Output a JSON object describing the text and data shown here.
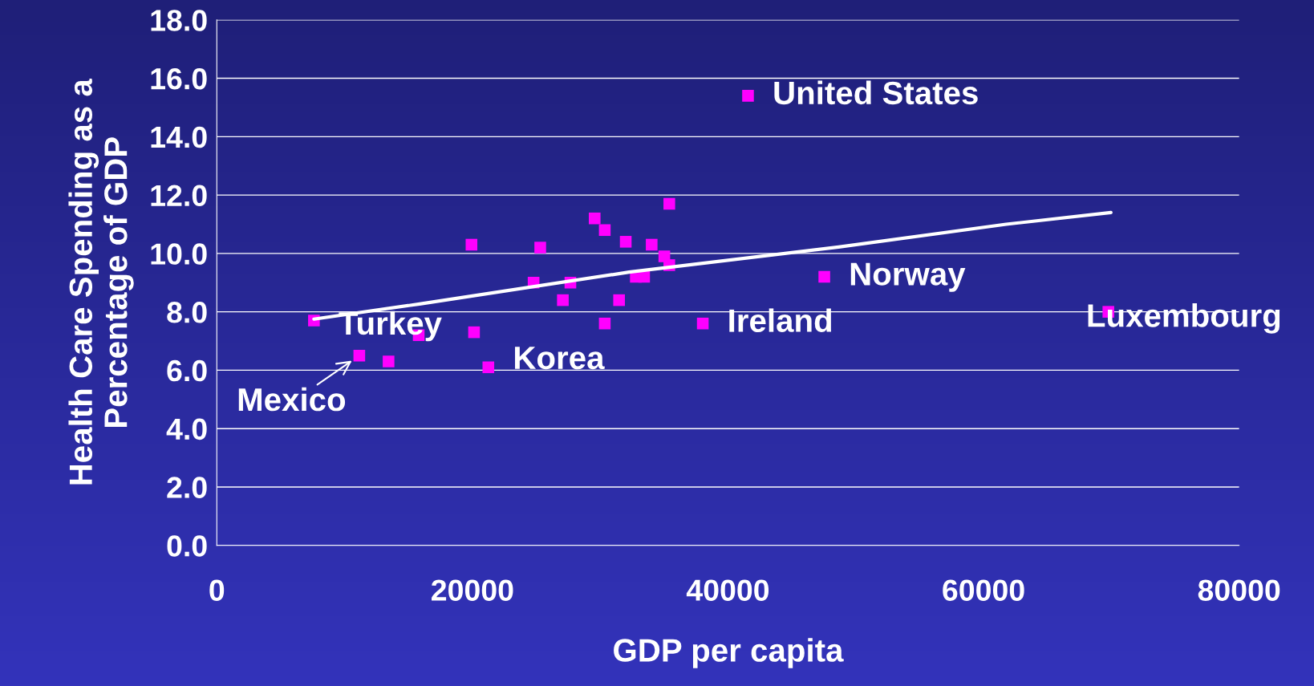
{
  "chart_data": {
    "type": "scatter",
    "xlabel": "GDP per capita",
    "ylabel": "Health Care Spending as a\nPercentage of GDP",
    "xlim": [
      0,
      80000
    ],
    "xticks": [
      0,
      20000,
      40000,
      60000,
      80000
    ],
    "ylim": [
      0,
      18
    ],
    "yticks": [
      {
        "value": 0,
        "label": "0.0"
      },
      {
        "value": 2,
        "label": "2.0"
      },
      {
        "value": 4,
        "label": "4.0"
      },
      {
        "value": 6,
        "label": "6.0"
      },
      {
        "value": 8,
        "label": "8.0"
      },
      {
        "value": 10,
        "label": "10.0"
      },
      {
        "value": 12,
        "label": "12.0"
      },
      {
        "value": 14,
        "label": "14.0"
      },
      {
        "value": 16,
        "label": "16.0"
      },
      {
        "value": 18,
        "label": "18.0"
      }
    ],
    "grid": "y",
    "legend": false,
    "series": [
      {
        "marker": "square",
        "color": "#ff00ff",
        "x": [
          7600,
          11150,
          13440,
          15800,
          20130,
          19930,
          21250,
          24790,
          25310,
          27080,
          27670,
          29570,
          30360,
          30360,
          31480,
          32000,
          32790,
          33440,
          34030,
          35020,
          35410,
          35410,
          38030,
          41570,
          47540,
          69770
        ],
        "values": [
          7.7,
          6.5,
          6.3,
          7.2,
          7.3,
          10.3,
          6.1,
          9.0,
          10.2,
          8.4,
          9.0,
          11.2,
          10.8,
          7.6,
          8.4,
          10.4,
          9.2,
          9.2,
          10.3,
          9.9,
          9.6,
          11.7,
          7.6,
          15.4,
          9.2,
          8.0
        ]
      },
      {
        "type": "line",
        "color": "#ffffff",
        "x": [
          7600,
          15870,
          32260,
          48660,
          61770,
          69970
        ],
        "values": [
          7.75,
          8.27,
          9.36,
          10.22,
          11.0,
          11.4
        ]
      }
    ],
    "annotations": [
      {
        "text": "United States",
        "x": 41570,
        "y": 15.4
      },
      {
        "text": "Norway",
        "x": 47540,
        "y": 9.2
      },
      {
        "text": "Luxembourg",
        "x": 69770,
        "y": 8.0
      },
      {
        "text": "Ireland",
        "x": 38030,
        "y": 7.6
      },
      {
        "text": "Turkey",
        "x": 7600,
        "y": 7.7
      },
      {
        "text": "Korea",
        "x": 21250,
        "y": 6.1
      },
      {
        "text": "Mexico",
        "x": 11150,
        "y": 6.5
      }
    ]
  }
}
